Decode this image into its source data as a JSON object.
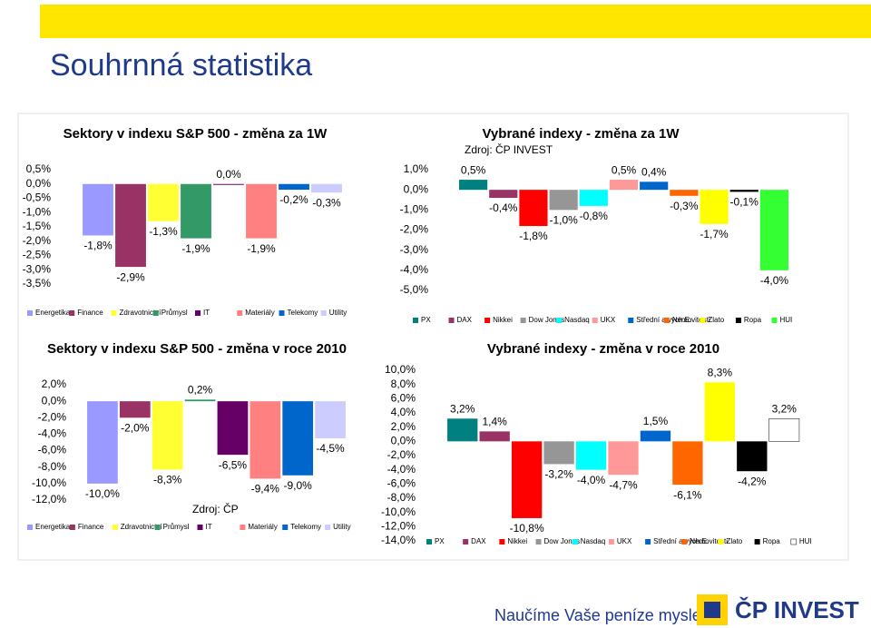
{
  "title": "Souhrnná statistika",
  "chart_data": [
    {
      "type": "bar",
      "title": "Sektory v indexu S&P 500 - změna za 1W",
      "categories": [
        "Energetika",
        "Finance",
        "Zdravotnictví",
        "Průmysl",
        "IT",
        "Materiály",
        "Telekomy",
        "Utility"
      ],
      "values": [
        -1.8,
        -2.9,
        -1.3,
        -1.9,
        0.0,
        -1.9,
        -0.2,
        -0.3
      ],
      "value_labels": [
        "-1,8%",
        "-2,9%",
        "-1,3%",
        "-1,9%",
        "0,0%",
        "-1,9%",
        "-0,2%",
        "-0,3%"
      ],
      "colors": [
        "#9999ff",
        "#993366",
        "#ffff33",
        "#339966",
        "#660066",
        "#ff8080",
        "#0066cc",
        "#ccccff"
      ],
      "ylim": [
        -3.5,
        0.5
      ],
      "yticks": [
        {
          "value": 0.5,
          "label": "0,5%"
        },
        {
          "value": 0.0,
          "label": "0,0%"
        },
        {
          "value": -0.5,
          "label": "-0,5%"
        },
        {
          "value": -1.0,
          "label": "-1,0%"
        },
        {
          "value": -1.5,
          "label": "-1,5%"
        },
        {
          "value": -2.0,
          "label": "-2,0%"
        },
        {
          "value": -2.5,
          "label": "-2,5%"
        },
        {
          "value": -3.0,
          "label": "-3,0%"
        },
        {
          "value": -3.5,
          "label": "-3,5%"
        }
      ],
      "legend": "bottom"
    },
    {
      "type": "bar",
      "title": "Vybrané indexy - změna za 1W",
      "subtitle": "Zdroj: ČP INVEST",
      "categories": [
        "PX",
        "DAX",
        "Nikkei",
        "Dow Jones",
        "Nasdaq",
        "UKX",
        "Střední a vých.E.",
        "Nemovitosti",
        "Zlato",
        "Ropa",
        "HUI"
      ],
      "values": [
        0.5,
        -0.4,
        -1.8,
        -1.0,
        -0.8,
        0.5,
        0.4,
        -0.3,
        -1.7,
        -0.1,
        -4.0
      ],
      "value_labels": [
        "0,5%",
        "-0,4%",
        "-1,8%",
        "-1,0%",
        "-0,8%",
        "0,5%",
        "0,4%",
        "-0,3%",
        "-1,7%",
        "-0,1%",
        "-4,0%"
      ],
      "colors": [
        "#008080",
        "#993366",
        "#ff0000",
        "#969696",
        "#00ffff",
        "#ff9999",
        "#0066cc",
        "#ff6600",
        "#ffff00",
        "#000000",
        "#33ff33"
      ],
      "ylim": [
        -5.0,
        1.0
      ],
      "yticks": [
        {
          "value": 1.0,
          "label": "1,0%"
        },
        {
          "value": 0.0,
          "label": "0,0%"
        },
        {
          "value": -1.0,
          "label": "-1,0%"
        },
        {
          "value": -2.0,
          "label": "-2,0%"
        },
        {
          "value": -3.0,
          "label": "-3,0%"
        },
        {
          "value": -4.0,
          "label": "-4,0%"
        },
        {
          "value": -5.0,
          "label": "-5,0%"
        }
      ],
      "legend": "bottom"
    },
    {
      "type": "bar",
      "title": "Sektory v indexu S&P 500 - změna v roce 2010",
      "annotation": "Zdroj: ČP",
      "categories": [
        "Energetika",
        "Finance",
        "Zdravotnictví",
        "Průmysl",
        "IT",
        "Materiály",
        "Telekomy",
        "Utility"
      ],
      "values": [
        -10.0,
        -2.0,
        -8.3,
        0.2,
        -6.5,
        -9.4,
        -9.0,
        -4.5
      ],
      "value_labels": [
        "-10,0%",
        "-2,0%",
        "-8,3%",
        "0,2%",
        "-6,5%",
        "-9,4%",
        "-9,0%",
        "-4,5%"
      ],
      "colors": [
        "#9999ff",
        "#993366",
        "#ffff33",
        "#339966",
        "#660066",
        "#ff8080",
        "#0066cc",
        "#ccccff"
      ],
      "ylim": [
        -12.0,
        2.0
      ],
      "yticks": [
        {
          "value": 2.0,
          "label": "2,0%"
        },
        {
          "value": 0.0,
          "label": "0,0%"
        },
        {
          "value": -2.0,
          "label": "-2,0%"
        },
        {
          "value": -4.0,
          "label": "-4,0%"
        },
        {
          "value": -6.0,
          "label": "-6,0%"
        },
        {
          "value": -8.0,
          "label": "-8,0%"
        },
        {
          "value": -10.0,
          "label": "-10,0%"
        },
        {
          "value": -12.0,
          "label": "-12,0%"
        }
      ],
      "legend": "bottom"
    },
    {
      "type": "bar",
      "title": "Vybrané indexy - změna v roce 2010",
      "categories": [
        "PX",
        "DAX",
        "Nikkei",
        "Dow Jones",
        "Nasdaq",
        "UKX",
        "Střední a vých.E.",
        "Nemovitosti",
        "Zlato",
        "Ropa",
        "HUI"
      ],
      "values": [
        3.2,
        1.4,
        -10.8,
        -3.2,
        -4.0,
        -4.7,
        1.5,
        -6.1,
        8.3,
        -4.2,
        3.2
      ],
      "value_labels": [
        "3,2%",
        "1,4%",
        "-10,8%",
        "-3,2%",
        "-4,0%",
        "-4,7%",
        "1,5%",
        "-6,1%",
        "8,3%",
        "-4,2%",
        "3,2%"
      ],
      "colors": [
        "#008080",
        "#993366",
        "#ff0000",
        "#969696",
        "#00ffff",
        "#ff9999",
        "#0066cc",
        "#ff6600",
        "#ffff00",
        "#000000",
        "#ffffff"
      ],
      "ylim": [
        -14.0,
        10.0
      ],
      "yticks": [
        {
          "value": 10.0,
          "label": "10,0%"
        },
        {
          "value": 8.0,
          "label": "8,0%"
        },
        {
          "value": 6.0,
          "label": "6,0%"
        },
        {
          "value": 4.0,
          "label": "4,0%"
        },
        {
          "value": 2.0,
          "label": "2,0%"
        },
        {
          "value": 0.0,
          "label": "0,0%"
        },
        {
          "value": -2.0,
          "label": "-2,0%"
        },
        {
          "value": -4.0,
          "label": "-4,0%"
        },
        {
          "value": -6.0,
          "label": "-6,0%"
        },
        {
          "value": -8.0,
          "label": "-8,0%"
        },
        {
          "value": -10.0,
          "label": "-10,0%"
        },
        {
          "value": -12.0,
          "label": "-12,0%"
        },
        {
          "value": -14.0,
          "label": "-14,0%"
        }
      ],
      "legend": "bottom"
    }
  ],
  "footer": {
    "slogan": "Naučíme Vaše peníze myslet",
    "logo": "ČP INVEST"
  }
}
